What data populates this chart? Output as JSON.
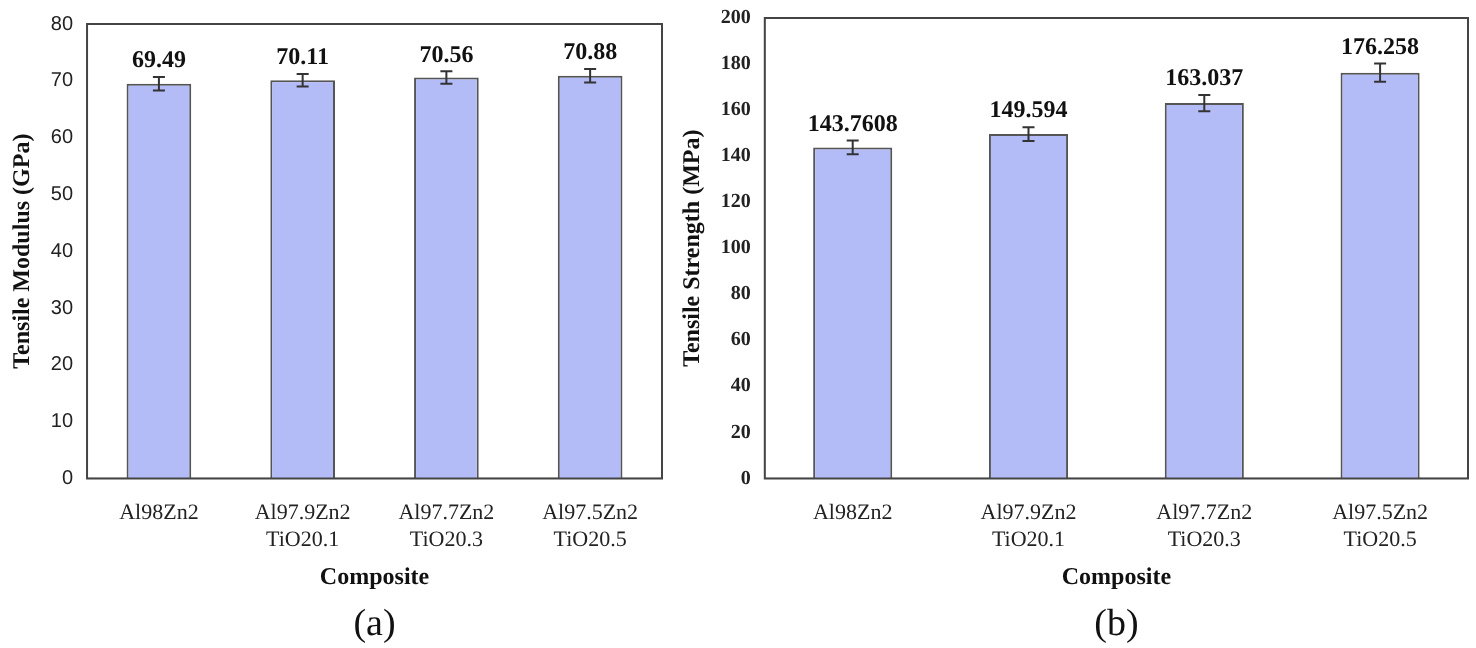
{
  "chart_data": [
    {
      "type": "bar",
      "xlabel": "Composite",
      "ylabel": "Tensile Modulus (GPa)",
      "annotations": [
        "(a)"
      ],
      "categories": [
        "Al98Zn2",
        "Al97.9Zn2\nTiO20.1",
        "Al97.7Zn2\nTiO20.3",
        "Al97.5Zn2\nTiO20.5"
      ],
      "values": [
        69.49,
        70.11,
        70.56,
        70.88
      ],
      "errors": [
        1.2,
        1.1,
        1.1,
        1.2
      ],
      "color": "#b4bcf8",
      "ylim": [
        0,
        80
      ],
      "yticks": [
        0,
        10,
        20,
        30,
        40,
        50,
        60,
        70,
        80
      ],
      "grid": false,
      "legend": false,
      "data_labels": true
    },
    {
      "type": "bar",
      "xlabel": "Composite",
      "ylabel": "Tensile Strength (MPa)",
      "annotations": [
        "(b)"
      ],
      "categories": [
        "Al98Zn2",
        "Al97.9Zn2\nTiO20.1",
        "Al97.7Zn2\nTiO20.3",
        "Al97.5Zn2\nTiO20.5"
      ],
      "values": [
        143.7608,
        149.594,
        163.037,
        176.258
      ],
      "errors": [
        3,
        3,
        3.5,
        4
      ],
      "color": "#b4bcf8",
      "ylim": [
        0,
        200
      ],
      "yticks": [
        0,
        20,
        40,
        60,
        80,
        100,
        120,
        140,
        160,
        180,
        200
      ],
      "grid": false,
      "legend": false,
      "data_labels": true
    }
  ]
}
